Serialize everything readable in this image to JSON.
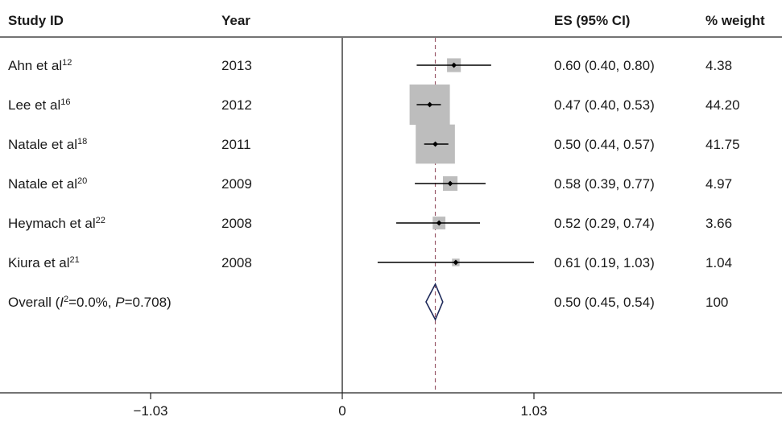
{
  "chart_data": {
    "type": "forest",
    "columns": {
      "study": "Study ID",
      "year": "Year",
      "es": "ES (95% CI)",
      "weight": "% weight"
    },
    "studies": [
      {
        "name": "Ahn et al",
        "ref": "12",
        "year": "2013",
        "es": 0.6,
        "lo": 0.4,
        "hi": 0.8,
        "es_label": "0.60 (0.40, 0.80)",
        "weight": 4.38,
        "weight_label": "4.38"
      },
      {
        "name": "Lee et al",
        "ref": "16",
        "year": "2012",
        "es": 0.47,
        "lo": 0.4,
        "hi": 0.53,
        "es_label": "0.47 (0.40, 0.53)",
        "weight": 44.2,
        "weight_label": "44.20"
      },
      {
        "name": "Natale et al",
        "ref": "18",
        "year": "2011",
        "es": 0.5,
        "lo": 0.44,
        "hi": 0.57,
        "es_label": "0.50 (0.44, 0.57)",
        "weight": 41.75,
        "weight_label": "41.75"
      },
      {
        "name": "Natale et al",
        "ref": "20",
        "year": "2009",
        "es": 0.58,
        "lo": 0.39,
        "hi": 0.77,
        "es_label": "0.58 (0.39, 0.77)",
        "weight": 4.97,
        "weight_label": "4.97"
      },
      {
        "name": "Heymach et al",
        "ref": "22",
        "year": "2008",
        "es": 0.52,
        "lo": 0.29,
        "hi": 0.74,
        "es_label": "0.52 (0.29, 0.74)",
        "weight": 3.66,
        "weight_label": "3.66"
      },
      {
        "name": "Kiura et al",
        "ref": "21",
        "year": "2008",
        "es": 0.61,
        "lo": 0.19,
        "hi": 1.03,
        "es_label": "0.61 (0.19, 1.03)",
        "weight": 1.04,
        "weight_label": "1.04"
      }
    ],
    "overall": {
      "label_prefix": "Overall (",
      "i2_symbol": "I",
      "i2_exp": "2",
      "i2_value": "=0.0%, ",
      "p_symbol": "P",
      "p_value": "=0.708)",
      "es": 0.5,
      "lo": 0.45,
      "hi": 0.54,
      "es_label": "0.50 (0.45, 0.54)",
      "weight_label": "100"
    },
    "xlim": [
      -1.03,
      1.03
    ],
    "xticks": [
      {
        "value": -1.03,
        "label": "−1.03"
      },
      {
        "value": 0,
        "label": "0"
      },
      {
        "value": 1.03,
        "label": "1.03"
      }
    ],
    "colors": {
      "box": "#bdbdbd",
      "ci_line": "#000000",
      "diamond": "#1e2a5a",
      "reference_line": "#9a5a6a",
      "axis": "#222222"
    }
  }
}
